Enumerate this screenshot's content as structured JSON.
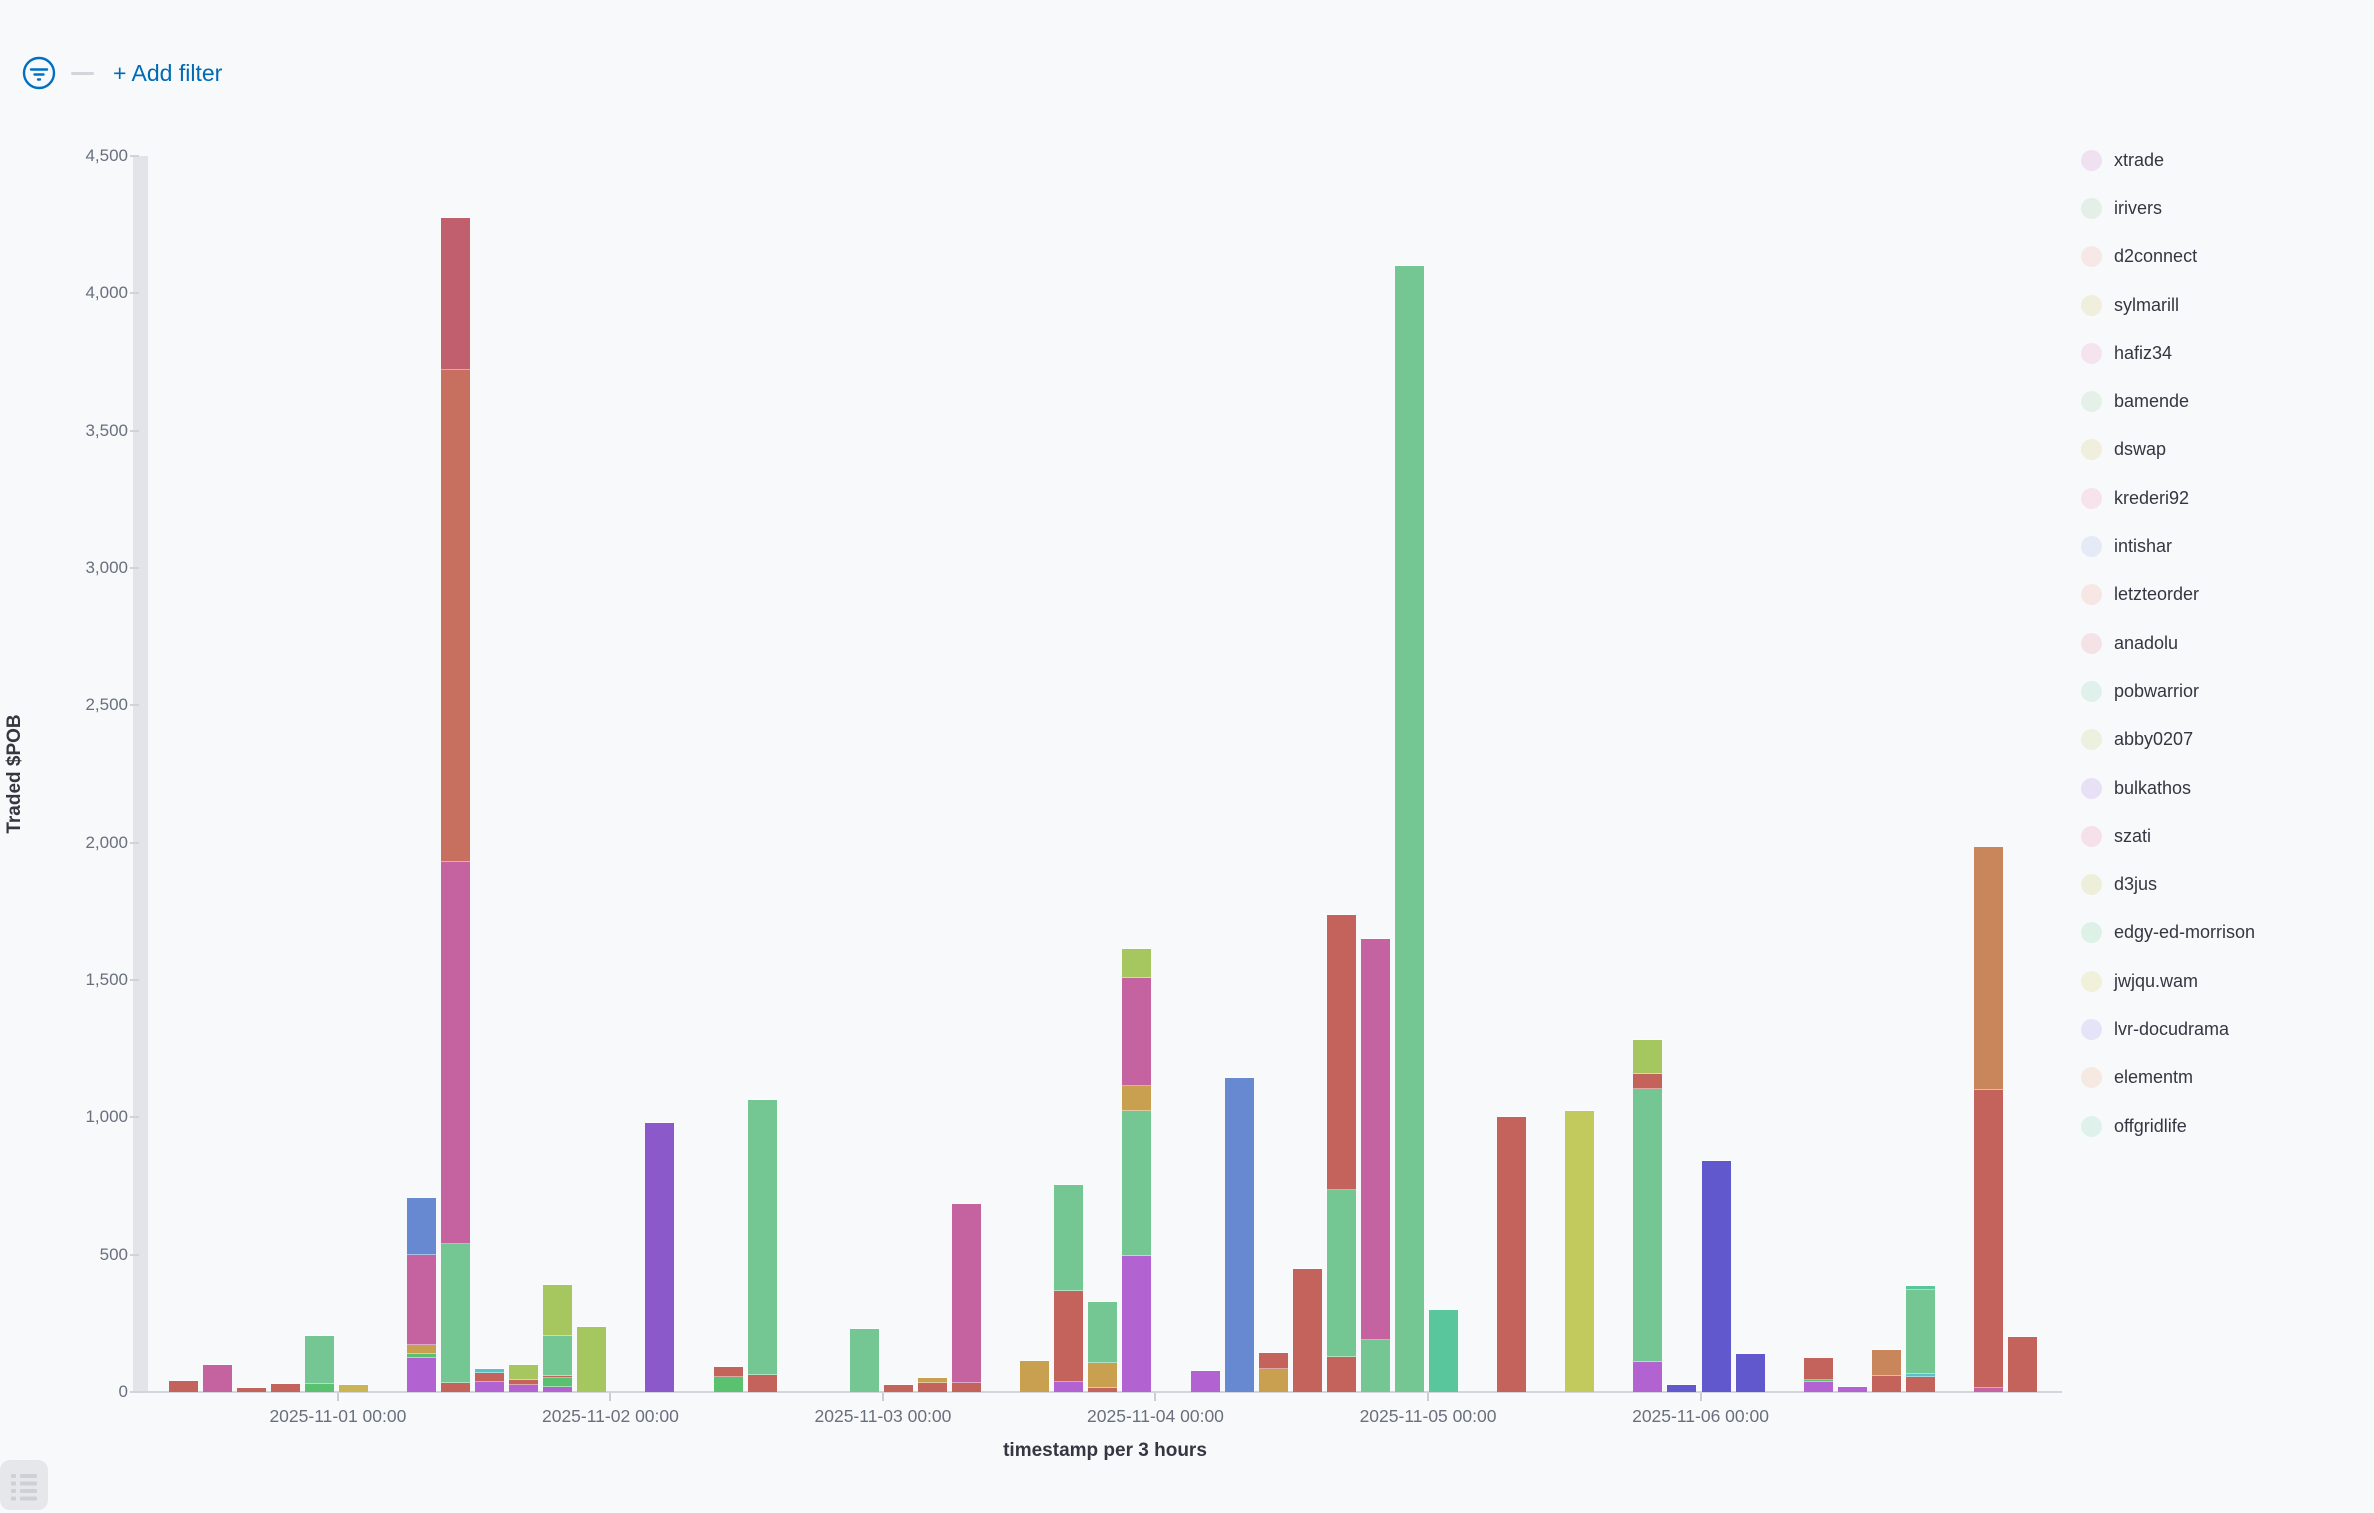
{
  "filter_bar": {
    "add_filter_label": "+ Add filter",
    "accent_color": "#006bb4"
  },
  "chart_data": {
    "type": "bar",
    "stacked": true,
    "title": "",
    "xlabel": "timestamp per 3 hours",
    "ylabel": "Traded $POB",
    "ylim": [
      0,
      4500
    ],
    "grid": false,
    "legend_position": "right",
    "y_ticks": [
      {
        "v": 0,
        "label": "0"
      },
      {
        "v": 500,
        "label": "500"
      },
      {
        "v": 1000,
        "label": "1,000"
      },
      {
        "v": 1500,
        "label": "1,500"
      },
      {
        "v": 2000,
        "label": "2,000"
      },
      {
        "v": 2500,
        "label": "2,500"
      },
      {
        "v": 3000,
        "label": "3,000"
      },
      {
        "v": 3500,
        "label": "3,500"
      },
      {
        "v": 4000,
        "label": "4,000"
      },
      {
        "v": 4500,
        "label": "4,500"
      }
    ],
    "x_ticks": [
      {
        "time": "2025-11-01T00:00",
        "label": "2025-11-01 00:00"
      },
      {
        "time": "2025-11-02T00:00",
        "label": "2025-11-02 00:00"
      },
      {
        "time": "2025-11-03T00:00",
        "label": "2025-11-03 00:00"
      },
      {
        "time": "2025-11-04T00:00",
        "label": "2025-11-04 00:00"
      },
      {
        "time": "2025-11-05T00:00",
        "label": "2025-11-05 00:00"
      },
      {
        "time": "2025-11-06T00:00",
        "label": "2025-11-06 00:00"
      }
    ],
    "palette": {
      "brickRed": "#c4625c",
      "rose": "#c25f6e",
      "salmon": "#c8705f",
      "magenta": "#c562a0",
      "green": "#74c793",
      "brightGreen": "#59c170",
      "tealGreen": "#5ac69c",
      "cyan": "#58c0c6",
      "yellow": "#c9b554",
      "tan": "#c9a04f",
      "orange": "#c9865a",
      "yellowGreen": "#a6c75f",
      "olive": "#c2c95d",
      "violet": "#b262d1",
      "purple": "#8b59c9",
      "blue": "#6689d1",
      "indigo": "#6158cd"
    },
    "bars": [
      {
        "time": "2025-10-31T09:00",
        "segments": [
          [
            "brickRed",
            40
          ]
        ]
      },
      {
        "time": "2025-10-31T12:00",
        "segments": [
          [
            "magenta",
            100
          ]
        ]
      },
      {
        "time": "2025-10-31T15:00",
        "segments": [
          [
            "brickRed",
            15
          ]
        ]
      },
      {
        "time": "2025-10-31T18:00",
        "segments": [
          [
            "brickRed",
            30
          ]
        ]
      },
      {
        "time": "2025-10-31T21:00",
        "segments": [
          [
            "brightGreen",
            30
          ],
          [
            "green",
            175
          ]
        ]
      },
      {
        "time": "2025-11-01T00:00",
        "segments": [
          [
            "yellow",
            27
          ]
        ]
      },
      {
        "time": "2025-11-01T06:00",
        "segments": [
          [
            "violet",
            124
          ],
          [
            "brightGreen",
            15
          ],
          [
            "tan",
            33
          ],
          [
            "magenta",
            328
          ],
          [
            "blue",
            207
          ]
        ]
      },
      {
        "time": "2025-11-01T09:00",
        "segments": [
          [
            "brickRed",
            33
          ],
          [
            "green",
            506
          ],
          [
            "magenta",
            1391
          ],
          [
            "salmon",
            1792
          ],
          [
            "rose",
            553
          ]
        ]
      },
      {
        "time": "2025-11-01T12:00",
        "segments": [
          [
            "violet",
            35
          ],
          [
            "brickRed",
            35
          ],
          [
            "cyan",
            15
          ]
        ]
      },
      {
        "time": "2025-11-01T15:00",
        "segments": [
          [
            "violet",
            25
          ],
          [
            "brickRed",
            20
          ],
          [
            "yellowGreen",
            55
          ]
        ]
      },
      {
        "time": "2025-11-01T18:00",
        "segments": [
          [
            "violet",
            20
          ],
          [
            "brightGreen",
            30
          ],
          [
            "brickRed",
            10
          ],
          [
            "green",
            145
          ],
          [
            "yellowGreen",
            185
          ]
        ]
      },
      {
        "time": "2025-11-01T21:00",
        "segments": [
          [
            "yellowGreen",
            237
          ]
        ]
      },
      {
        "time": "2025-11-02T03:00",
        "segments": [
          [
            "purple",
            980
          ]
        ]
      },
      {
        "time": "2025-11-02T09:00",
        "segments": [
          [
            "brightGreen",
            55
          ],
          [
            "brickRed",
            36
          ]
        ]
      },
      {
        "time": "2025-11-02T12:00",
        "segments": [
          [
            "brickRed",
            62
          ],
          [
            "green",
            1000
          ]
        ]
      },
      {
        "time": "2025-11-02T21:00",
        "segments": [
          [
            "green",
            229
          ]
        ]
      },
      {
        "time": "2025-11-03T00:00",
        "segments": [
          [
            "brickRed",
            25
          ]
        ]
      },
      {
        "time": "2025-11-03T03:00",
        "segments": [
          [
            "brickRed",
            33
          ],
          [
            "tan",
            18
          ]
        ]
      },
      {
        "time": "2025-11-03T06:00",
        "segments": [
          [
            "brickRed",
            33
          ],
          [
            "magenta",
            652
          ]
        ]
      },
      {
        "time": "2025-11-03T12:00",
        "segments": [
          [
            "tan",
            113
          ]
        ]
      },
      {
        "time": "2025-11-03T15:00",
        "segments": [
          [
            "violet",
            36
          ],
          [
            "brickRed",
            331
          ],
          [
            "green",
            386
          ]
        ]
      },
      {
        "time": "2025-11-03T18:00",
        "segments": [
          [
            "brickRed",
            15
          ],
          [
            "tan",
            91
          ],
          [
            "green",
            222
          ]
        ]
      },
      {
        "time": "2025-11-03T21:00",
        "segments": [
          [
            "violet",
            495
          ],
          [
            "green",
            528
          ],
          [
            "tan",
            91
          ],
          [
            "magenta",
            393
          ],
          [
            "yellowGreen",
            106
          ]
        ]
      },
      {
        "time": "2025-11-04T03:00",
        "segments": [
          [
            "violet",
            76
          ]
        ]
      },
      {
        "time": "2025-11-04T06:00",
        "segments": [
          [
            "blue",
            1144
          ]
        ]
      },
      {
        "time": "2025-11-04T09:00",
        "segments": [
          [
            "tan",
            84
          ],
          [
            "brickRed",
            58
          ]
        ]
      },
      {
        "time": "2025-11-04T12:00",
        "segments": [
          [
            "brickRed",
            448
          ]
        ]
      },
      {
        "time": "2025-11-04T15:00",
        "segments": [
          [
            "brickRed",
            127
          ],
          [
            "green",
            608
          ],
          [
            "brickRed",
            1001
          ]
        ]
      },
      {
        "time": "2025-11-04T18:00",
        "segments": [
          [
            "green",
            189
          ],
          [
            "magenta",
            1460
          ]
        ]
      },
      {
        "time": "2025-11-04T21:00",
        "segments": [
          [
            "green",
            4101
          ]
        ]
      },
      {
        "time": "2025-11-05T00:00",
        "segments": [
          [
            "tealGreen",
            300
          ]
        ]
      },
      {
        "time": "2025-11-05T06:00",
        "segments": [
          [
            "brickRed",
            1000
          ]
        ]
      },
      {
        "time": "2025-11-05T12:00",
        "segments": [
          [
            "olive",
            1023
          ]
        ]
      },
      {
        "time": "2025-11-05T18:00",
        "segments": [
          [
            "violet",
            110
          ],
          [
            "green",
            994
          ],
          [
            "brickRed",
            55
          ],
          [
            "yellowGreen",
            124
          ]
        ]
      },
      {
        "time": "2025-11-05T21:00",
        "segments": [
          [
            "indigo",
            26
          ]
        ]
      },
      {
        "time": "2025-11-06T00:00",
        "segments": [
          [
            "indigo",
            842
          ]
        ]
      },
      {
        "time": "2025-11-06T03:00",
        "segments": [
          [
            "indigo",
            140
          ]
        ]
      },
      {
        "time": "2025-11-06T09:00",
        "segments": [
          [
            "violet",
            35
          ],
          [
            "brightGreen",
            10
          ],
          [
            "brickRed",
            80
          ]
        ]
      },
      {
        "time": "2025-11-06T12:00",
        "segments": [
          [
            "violet",
            18
          ]
        ]
      },
      {
        "time": "2025-11-06T15:00",
        "segments": [
          [
            "brickRed",
            58
          ],
          [
            "orange",
            95
          ]
        ]
      },
      {
        "time": "2025-11-06T18:00",
        "segments": [
          [
            "brickRed",
            55
          ],
          [
            "cyan",
            12
          ],
          [
            "green",
            303
          ],
          [
            "tealGreen",
            15
          ]
        ]
      },
      {
        "time": "2025-11-07T00:00",
        "segments": [
          [
            "magenta",
            15
          ],
          [
            "brickRed",
            1085
          ],
          [
            "orange",
            885
          ]
        ]
      },
      {
        "time": "2025-11-07T03:00",
        "segments": [
          [
            "brickRed",
            200
          ]
        ]
      }
    ],
    "legend": [
      {
        "label": "xtrade",
        "swatch": "#efe1f1"
      },
      {
        "label": "irivers",
        "swatch": "#e3efe7"
      },
      {
        "label": "d2connect",
        "swatch": "#f6e8e6"
      },
      {
        "label": "sylmarill",
        "swatch": "#f0eedd"
      },
      {
        "label": "hafiz34",
        "swatch": "#f5e3ee"
      },
      {
        "label": "bamende",
        "swatch": "#e5f1e8"
      },
      {
        "label": "dswap",
        "swatch": "#f0eedc"
      },
      {
        "label": "krederi92",
        "swatch": "#f6e3ec"
      },
      {
        "label": "intishar",
        "swatch": "#e4eaf6"
      },
      {
        "label": "letzteorder",
        "swatch": "#f6e7e5"
      },
      {
        "label": "anadolu",
        "swatch": "#f5e2e6"
      },
      {
        "label": "pobwarrior",
        "swatch": "#e0f1ec"
      },
      {
        "label": "abby0207",
        "swatch": "#eaf1df"
      },
      {
        "label": "bulkathos",
        "swatch": "#e8e1f5"
      },
      {
        "label": "szati",
        "swatch": "#f6e1eb"
      },
      {
        "label": "d3jus",
        "swatch": "#eeefdb"
      },
      {
        "label": "edgy-ed-morrison",
        "swatch": "#def1e7"
      },
      {
        "label": "jwjqu.wam",
        "swatch": "#f1f0db"
      },
      {
        "label": "lvr-docudrama",
        "swatch": "#e5e3f7"
      },
      {
        "label": "elementm",
        "swatch": "#f6e9e1"
      },
      {
        "label": "offgridlife",
        "swatch": "#dff1eb"
      }
    ]
  }
}
